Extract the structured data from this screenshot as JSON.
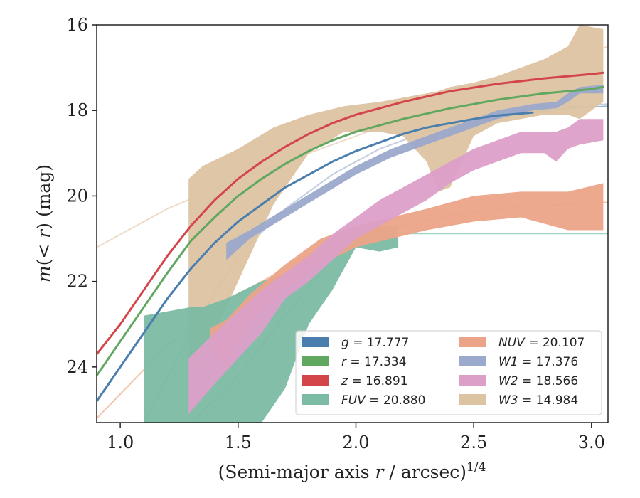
{
  "chart_data": {
    "type": "area",
    "xlabel_main": "(Semi-major axis ",
    "xlabel_var": "r",
    "xlabel_rest": " / arcsec)",
    "xlabel_sup": "1/4",
    "ylabel_pre": "m(< ",
    "ylabel_var": "r",
    "ylabel_post": ") (mag)",
    "xlim": [
      0.9,
      3.07
    ],
    "ylim": [
      25.3,
      16.0
    ],
    "y_inverted": true,
    "xticks": [
      1.0,
      1.5,
      2.0,
      2.5,
      3.0
    ],
    "xtick_labels": [
      "1.0",
      "1.5",
      "2.0",
      "2.5",
      "3.0"
    ],
    "yticks": [
      16,
      18,
      20,
      22,
      24
    ],
    "ytick_labels": [
      "16",
      "18",
      "20",
      "22",
      "24"
    ],
    "legend_position": "lower-right",
    "legend_columns": 2,
    "series": [
      {
        "key": "W3",
        "name": "W3",
        "label_text": "W3 = 14.984",
        "color": "#dcc3a1",
        "kind": "band",
        "x": [
          1.29,
          1.35,
          1.5,
          1.65,
          1.8,
          1.95,
          2.1,
          2.2,
          2.3,
          2.35,
          2.4,
          2.45,
          2.5,
          2.6,
          2.7,
          2.8,
          2.9,
          2.95,
          3.05
        ],
        "lo": [
          19.6,
          19.3,
          18.9,
          18.4,
          18.1,
          17.9,
          17.8,
          17.7,
          17.6,
          17.55,
          17.45,
          17.4,
          17.35,
          17.2,
          17.0,
          16.8,
          16.5,
          16.0,
          16.1
        ],
        "hi": [
          25.0,
          23.8,
          22.0,
          20.2,
          19.0,
          18.5,
          18.5,
          18.6,
          19.2,
          19.9,
          19.8,
          19.2,
          18.6,
          18.3,
          18.2,
          18.1,
          18.1,
          18.2,
          17.8
        ]
      },
      {
        "key": "FUV",
        "name": "FUV",
        "label_text": "FUV = 20.880",
        "color": "#7bbba3",
        "kind": "band",
        "x": [
          1.1,
          1.2,
          1.3,
          1.35,
          1.45,
          1.6,
          1.7,
          1.8,
          1.9,
          2.0,
          2.1,
          2.18
        ],
        "lo": [
          22.8,
          22.7,
          22.6,
          22.6,
          22.4,
          22.0,
          21.8,
          21.5,
          21.2,
          20.8,
          20.7,
          20.7
        ],
        "hi": [
          25.3,
          25.3,
          25.3,
          25.3,
          25.3,
          25.3,
          24.5,
          23.0,
          22.2,
          21.2,
          21.3,
          21.2
        ]
      },
      {
        "key": "NUV",
        "name": "NUV",
        "label_text": "NUV = 20.107",
        "color": "#eca488",
        "kind": "band",
        "x": [
          1.38,
          1.45,
          1.55,
          1.7,
          1.85,
          2.0,
          2.15,
          2.3,
          2.5,
          2.7,
          2.9,
          3.05
        ],
        "lo": [
          23.1,
          22.9,
          22.3,
          21.6,
          21.0,
          20.7,
          20.5,
          20.3,
          20.0,
          19.9,
          19.9,
          19.7
        ],
        "hi": [
          23.6,
          24.0,
          22.9,
          22.2,
          21.6,
          21.2,
          21.0,
          20.8,
          20.6,
          20.5,
          20.8,
          20.8
        ]
      },
      {
        "key": "W2",
        "name": "W2",
        "label_text": "W2 = 18.566",
        "color": "#dc9fc8",
        "kind": "band",
        "x": [
          1.29,
          1.4,
          1.5,
          1.6,
          1.7,
          1.8,
          1.9,
          2.0,
          2.1,
          2.2,
          2.3,
          2.4,
          2.5,
          2.6,
          2.7,
          2.8,
          2.85,
          2.9,
          2.95,
          3.05
        ],
        "lo": [
          23.8,
          23.2,
          22.7,
          22.2,
          21.8,
          21.4,
          20.9,
          20.5,
          20.1,
          19.8,
          19.5,
          19.2,
          18.9,
          18.7,
          18.5,
          18.5,
          18.5,
          18.4,
          18.2,
          18.2
        ],
        "hi": [
          25.1,
          24.4,
          23.8,
          23.2,
          22.4,
          22.0,
          21.5,
          21.0,
          20.7,
          20.4,
          20.1,
          19.7,
          19.4,
          19.2,
          19.0,
          19.0,
          19.2,
          18.9,
          18.8,
          18.7
        ]
      },
      {
        "key": "W1",
        "name": "W1",
        "label_text": "W1 = 17.376",
        "color": "#9ba9cc",
        "kind": "band",
        "x": [
          1.45,
          1.55,
          1.7,
          1.85,
          2.0,
          2.15,
          2.3,
          2.45,
          2.6,
          2.75,
          2.85,
          2.9,
          2.95,
          3.05
        ],
        "lo": [
          21.1,
          20.8,
          20.3,
          19.8,
          19.3,
          18.9,
          18.6,
          18.3,
          18.0,
          17.85,
          17.8,
          17.6,
          17.45,
          17.4
        ],
        "hi": [
          21.5,
          21.0,
          20.5,
          20.0,
          19.5,
          19.1,
          18.8,
          18.5,
          18.2,
          18.0,
          17.95,
          17.8,
          17.6,
          17.6
        ]
      },
      {
        "key": "g",
        "name": "g",
        "label_text": "g = 17.777",
        "color": "#4a7eae",
        "kind": "line",
        "x": [
          0.9,
          1.0,
          1.1,
          1.2,
          1.3,
          1.4,
          1.5,
          1.6,
          1.7,
          1.8,
          1.9,
          2.0,
          2.1,
          2.2,
          2.3,
          2.4,
          2.5,
          2.6,
          2.75
        ],
        "y": [
          24.8,
          24.0,
          23.2,
          22.4,
          21.7,
          21.1,
          20.6,
          20.2,
          19.8,
          19.5,
          19.2,
          18.95,
          18.75,
          18.55,
          18.4,
          18.3,
          18.2,
          18.12,
          18.05
        ]
      },
      {
        "key": "r",
        "name": "r",
        "label_text": "r = 17.334",
        "color": "#60a760",
        "kind": "line",
        "x": [
          0.9,
          1.0,
          1.1,
          1.2,
          1.3,
          1.4,
          1.5,
          1.6,
          1.7,
          1.8,
          1.9,
          2.0,
          2.2,
          2.4,
          2.6,
          2.8,
          3.0,
          3.05
        ],
        "y": [
          24.2,
          23.4,
          22.6,
          21.8,
          21.05,
          20.5,
          20.0,
          19.6,
          19.25,
          18.95,
          18.7,
          18.5,
          18.2,
          17.95,
          17.75,
          17.6,
          17.5,
          17.45
        ]
      },
      {
        "key": "z",
        "name": "z",
        "label_text": "z = 16.891",
        "color": "#d4454a",
        "kind": "line",
        "x": [
          0.9,
          1.0,
          1.1,
          1.2,
          1.3,
          1.4,
          1.5,
          1.6,
          1.7,
          1.8,
          1.9,
          2.0,
          2.2,
          2.4,
          2.6,
          2.8,
          3.0,
          3.05
        ],
        "y": [
          23.7,
          23.0,
          22.2,
          21.4,
          20.7,
          20.1,
          19.6,
          19.2,
          18.85,
          18.55,
          18.3,
          18.1,
          17.8,
          17.55,
          17.38,
          17.25,
          17.15,
          17.12
        ]
      }
    ],
    "model_curves": [
      {
        "key": "W3",
        "color": "#e8d3bc",
        "x": [
          0.9,
          1.2,
          1.5,
          1.8,
          2.1,
          2.4,
          2.7,
          3.07
        ],
        "y": [
          21.2,
          20.3,
          19.6,
          19.0,
          18.4,
          17.9,
          17.3,
          16.5
        ]
      },
      {
        "key": "FUV",
        "color": "#8fc6b0",
        "x": [
          1.3,
          1.5,
          1.7,
          1.85,
          1.95,
          2.0,
          2.1,
          2.3,
          2.6,
          3.07
        ],
        "y": [
          25.3,
          24.2,
          22.8,
          21.8,
          21.1,
          20.9,
          20.88,
          20.88,
          20.88,
          20.88
        ]
      },
      {
        "key": "NUV",
        "color": "#f0b597",
        "x": [
          0.9,
          1.2,
          1.5,
          1.8,
          2.1,
          2.4,
          2.7,
          3.07
        ],
        "y": [
          25.2,
          23.5,
          22.3,
          21.4,
          20.8,
          20.45,
          20.25,
          20.15
        ]
      },
      {
        "key": "W1",
        "color": "#b7c1dc",
        "x": [
          1.1,
          1.3,
          1.5,
          1.7,
          1.9,
          2.1,
          2.3,
          2.5,
          2.7,
          2.9,
          3.07
        ],
        "y": [
          25.3,
          23.2,
          21.4,
          20.3,
          19.5,
          18.9,
          18.5,
          18.2,
          18.0,
          17.9,
          17.85
        ]
      },
      {
        "key": "g",
        "color": "#7fa4c6",
        "x": [
          2.6,
          2.75,
          2.9,
          3.07
        ],
        "y": [
          18.12,
          18.05,
          17.95,
          17.9
        ]
      }
    ]
  }
}
